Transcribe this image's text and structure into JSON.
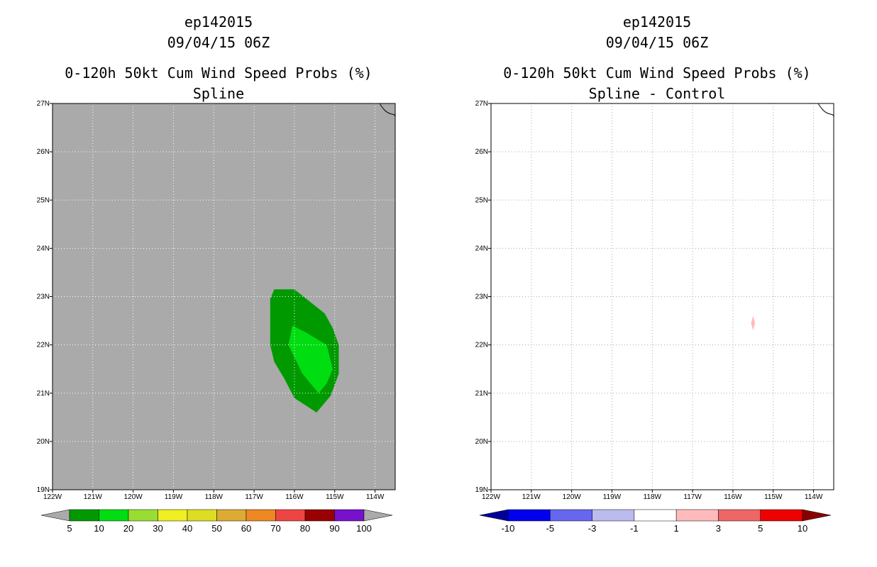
{
  "chart_data": [
    {
      "type": "contour-map",
      "storm_id": "ep142015",
      "datetime": "09/04/15 06Z",
      "title": "0-120h 50kt Cum Wind Speed Probs (%)",
      "subtitle": "Spline",
      "background_color": "#aaaaaa",
      "lon_range": [
        -122,
        -113.5
      ],
      "lat_range": [
        19,
        27
      ],
      "x_ticks": [
        -122,
        -121,
        -120,
        -119,
        -118,
        -117,
        -116,
        -115,
        -114
      ],
      "x_tick_labels": [
        "122W",
        "121W",
        "120W",
        "119W",
        "118W",
        "117W",
        "116W",
        "115W",
        "114W"
      ],
      "y_ticks": [
        19,
        20,
        21,
        22,
        23,
        24,
        25,
        26,
        27
      ],
      "y_tick_labels": [
        "19N",
        "20N",
        "21N",
        "22N",
        "23N",
        "24N",
        "25N",
        "26N",
        "27N"
      ],
      "contours": [
        {
          "level": "5-10",
          "color": "#009900",
          "polygon": [
            [
              -116.5,
              23.15
            ],
            [
              -116.0,
              23.15
            ],
            [
              -115.7,
              22.95
            ],
            [
              -115.25,
              22.65
            ],
            [
              -115.05,
              22.35
            ],
            [
              -114.9,
              22.0
            ],
            [
              -114.9,
              21.4
            ],
            [
              -115.1,
              20.95
            ],
            [
              -115.45,
              20.6
            ],
            [
              -116.0,
              20.9
            ],
            [
              -116.25,
              21.3
            ],
            [
              -116.5,
              21.65
            ],
            [
              -116.6,
              22.0
            ],
            [
              -116.6,
              22.4
            ],
            [
              -116.6,
              22.95
            ]
          ]
        },
        {
          "level": "10-20",
          "color": "#00dd11",
          "polygon": [
            [
              -116.05,
              22.4
            ],
            [
              -115.7,
              22.25
            ],
            [
              -115.2,
              22.0
            ],
            [
              -115.05,
              21.5
            ],
            [
              -115.2,
              21.2
            ],
            [
              -115.4,
              21.0
            ],
            [
              -115.8,
              21.4
            ],
            [
              -116.15,
              22.0
            ]
          ]
        }
      ],
      "colorbar": {
        "labels": [
          "5",
          "10",
          "20",
          "30",
          "40",
          "50",
          "60",
          "70",
          "80",
          "90",
          "100"
        ],
        "colors": [
          "#009900",
          "#00dd11",
          "#99dd33",
          "#eeee22",
          "#dddd22",
          "#ddaa33",
          "#ee8822",
          "#ee4444",
          "#990000",
          "#7711cc"
        ],
        "under_color": "#aaaaaa",
        "over_color": "#aaaaaa"
      }
    },
    {
      "type": "contour-map",
      "storm_id": "ep142015",
      "datetime": "09/04/15 06Z",
      "title": "0-120h 50kt Cum Wind Speed Probs (%)",
      "subtitle": "Spline - Control",
      "background_color": "#ffffff",
      "lon_range": [
        -122,
        -113.5
      ],
      "lat_range": [
        19,
        27
      ],
      "x_ticks": [
        -122,
        -121,
        -120,
        -119,
        -118,
        -117,
        -116,
        -115,
        -114
      ],
      "x_tick_labels": [
        "122W",
        "121W",
        "120W",
        "119W",
        "118W",
        "117W",
        "116W",
        "115W",
        "114W"
      ],
      "y_ticks": [
        19,
        20,
        21,
        22,
        23,
        24,
        25,
        26,
        27
      ],
      "y_tick_labels": [
        "19N",
        "20N",
        "21N",
        "22N",
        "23N",
        "24N",
        "25N",
        "26N",
        "27N"
      ],
      "contours": [
        {
          "level": "1-3",
          "color": "#ffbbbb",
          "polygon": [
            [
              -115.5,
              22.6
            ],
            [
              -115.45,
              22.45
            ],
            [
              -115.5,
              22.3
            ],
            [
              -115.55,
              22.45
            ]
          ]
        }
      ],
      "colorbar": {
        "labels": [
          "-10",
          "-5",
          "-3",
          "-1",
          "1",
          "3",
          "5",
          "10"
        ],
        "colors": [
          "#0000ee",
          "#6666ee",
          "#bbbbee",
          "#ffffff",
          "#ffbbbb",
          "#ee6666",
          "#ee0000"
        ],
        "under_color": "#000099",
        "over_color": "#880000"
      }
    }
  ]
}
